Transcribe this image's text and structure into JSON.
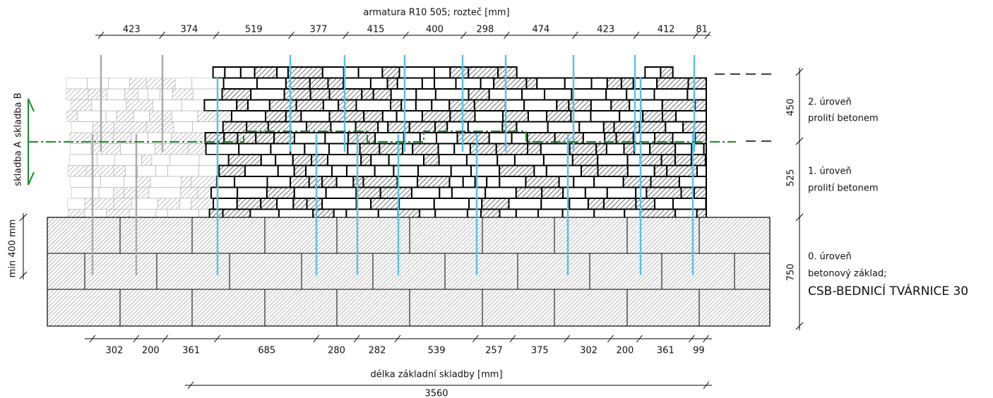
{
  "title": "armatura R10 505; rozteč [mm]",
  "top_dimensions": [
    423,
    374,
    519,
    377,
    415,
    400,
    298,
    474,
    423,
    412,
    81
  ],
  "bottom_dimensions": [
    302,
    200,
    361,
    685,
    280,
    282,
    539,
    257,
    375,
    302,
    200,
    361,
    99
  ],
  "total_length": {
    "label": "délka základní skladby [mm]",
    "value": 3560
  },
  "levels": [
    {
      "height": 450,
      "name": "2. úroveň",
      "description": "prolití betonem"
    },
    {
      "height": 525,
      "name": "1. úroveň",
      "description": "prolití betonem"
    },
    {
      "height": 750,
      "name": "0. úroveň",
      "description": "betonový základ;",
      "product": "CSB-BEDNICÍ TVÁRNICE 30"
    }
  ],
  "min_depth": "min 400 mm",
  "assemblies": [
    "skladba A",
    "skladba B"
  ]
}
